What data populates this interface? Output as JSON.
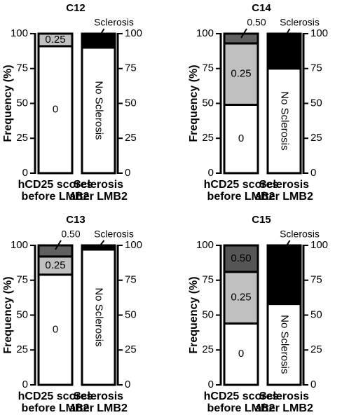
{
  "chart_data": [
    {
      "type": "bar",
      "stacked": true,
      "title": "C12",
      "ylabel": "Frequency (%)",
      "categories": [
        "hCD25 scores before LMB2",
        "Sclerosis after LMB2"
      ],
      "series": [
        {
          "name": "0",
          "color": "#ffffff",
          "values": [
            91,
            null
          ],
          "label_position": "inside"
        },
        {
          "name": "0.25",
          "color": "#c0c0c0",
          "values": [
            9,
            null
          ],
          "label_position": "inside"
        },
        {
          "name": "No Sclerosis",
          "color": "#ffffff",
          "values": [
            null,
            90
          ],
          "label_position": "inside",
          "rotated": true
        },
        {
          "name": "Sclerosis",
          "color": "#000000",
          "values": [
            null,
            10
          ],
          "label_position": "above"
        }
      ],
      "ylim": [
        0,
        100
      ],
      "yticks": [
        0,
        25,
        50,
        75,
        100
      ],
      "y2lim": [
        0,
        100
      ],
      "y2ticks": [
        0,
        25,
        50,
        75,
        100
      ]
    },
    {
      "type": "bar",
      "stacked": true,
      "title": "C14",
      "ylabel": "Frequency (%)",
      "categories": [
        "hCD25 scores before LMB2",
        "Sclerosis after LMB2"
      ],
      "series": [
        {
          "name": "0",
          "color": "#ffffff",
          "values": [
            49,
            null
          ],
          "label_position": "inside"
        },
        {
          "name": "0.25",
          "color": "#c0c0c0",
          "values": [
            44,
            null
          ],
          "label_position": "inside"
        },
        {
          "name": "0.50",
          "color": "#606060",
          "values": [
            7,
            null
          ],
          "label_position": "above"
        },
        {
          "name": "No Sclerosis",
          "color": "#ffffff",
          "values": [
            null,
            75
          ],
          "label_position": "inside",
          "rotated": true
        },
        {
          "name": "Sclerosis",
          "color": "#000000",
          "values": [
            null,
            25
          ],
          "label_position": "above"
        }
      ],
      "ylim": [
        0,
        100
      ],
      "yticks": [
        0,
        25,
        50,
        75,
        100
      ],
      "y2lim": [
        0,
        100
      ],
      "y2ticks": [
        0,
        25,
        50,
        75,
        100
      ]
    },
    {
      "type": "bar",
      "stacked": true,
      "title": "C13",
      "ylabel": "Frequency (%)",
      "categories": [
        "hCD25 scores before LMB2",
        "Sclerosis after LMB2"
      ],
      "series": [
        {
          "name": "0",
          "color": "#ffffff",
          "values": [
            79,
            null
          ],
          "label_position": "inside"
        },
        {
          "name": "0.25",
          "color": "#c0c0c0",
          "values": [
            13,
            null
          ],
          "label_position": "inside"
        },
        {
          "name": "0.50",
          "color": "#606060",
          "values": [
            8,
            null
          ],
          "label_position": "above"
        },
        {
          "name": "No Sclerosis",
          "color": "#ffffff",
          "values": [
            null,
            97
          ],
          "label_position": "inside",
          "rotated": true
        },
        {
          "name": "Sclerosis",
          "color": "#000000",
          "values": [
            null,
            3
          ],
          "label_position": "above"
        }
      ],
      "ylim": [
        0,
        100
      ],
      "yticks": [
        0,
        25,
        50,
        75,
        100
      ],
      "y2lim": [
        0,
        100
      ],
      "y2ticks": [
        0,
        25,
        50,
        75,
        100
      ]
    },
    {
      "type": "bar",
      "stacked": true,
      "title": "C15",
      "ylabel": "Frequency (%)",
      "categories": [
        "hCD25 scores before LMB2",
        "Sclerosis after LMB2"
      ],
      "series": [
        {
          "name": "0",
          "color": "#ffffff",
          "values": [
            44,
            null
          ],
          "label_position": "inside"
        },
        {
          "name": "0.25",
          "color": "#c0c0c0",
          "values": [
            37,
            null
          ],
          "label_position": "inside"
        },
        {
          "name": "0.50",
          "color": "#555555",
          "values": [
            19,
            null
          ],
          "label_position": "inside"
        },
        {
          "name": "No Sclerosis",
          "color": "#ffffff",
          "values": [
            null,
            58
          ],
          "label_position": "inside",
          "rotated": true
        },
        {
          "name": "Sclerosis",
          "color": "#000000",
          "values": [
            null,
            42
          ],
          "label_position": "above"
        }
      ],
      "ylim": [
        0,
        100
      ],
      "yticks": [
        0,
        25,
        50,
        75,
        100
      ],
      "y2lim": [
        0,
        100
      ],
      "y2ticks": [
        0,
        25,
        50,
        75,
        100
      ]
    }
  ]
}
